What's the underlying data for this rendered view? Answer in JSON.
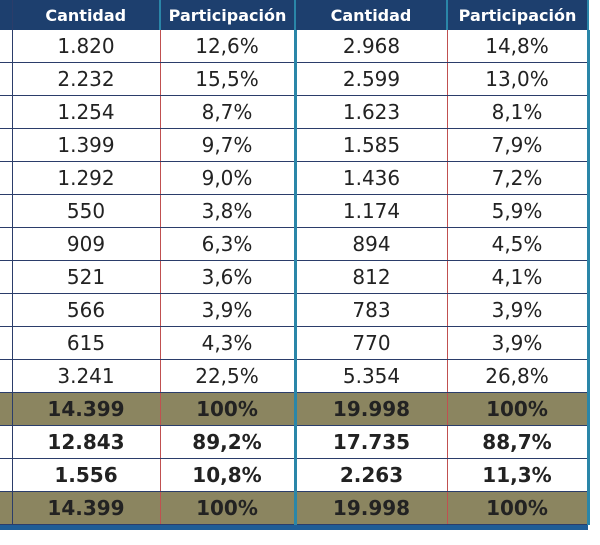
{
  "headers": [
    "Cantidad",
    "Participación",
    "Cantidad",
    "Participación"
  ],
  "rows": [
    {
      "type": "normal",
      "cells": [
        "1.820",
        "12,6%",
        "2.968",
        "14,8%"
      ]
    },
    {
      "type": "normal",
      "cells": [
        "2.232",
        "15,5%",
        "2.599",
        "13,0%"
      ]
    },
    {
      "type": "normal",
      "cells": [
        "1.254",
        "8,7%",
        "1.623",
        "8,1%"
      ]
    },
    {
      "type": "normal",
      "cells": [
        "1.399",
        "9,7%",
        "1.585",
        "7,9%"
      ]
    },
    {
      "type": "normal",
      "cells": [
        "1.292",
        "9,0%",
        "1.436",
        "7,2%"
      ]
    },
    {
      "type": "normal",
      "cells": [
        "550",
        "3,8%",
        "1.174",
        "5,9%"
      ]
    },
    {
      "type": "normal",
      "cells": [
        "909",
        "6,3%",
        "894",
        "4,5%"
      ]
    },
    {
      "type": "normal",
      "cells": [
        "521",
        "3,6%",
        "812",
        "4,1%"
      ]
    },
    {
      "type": "normal",
      "cells": [
        "566",
        "3,9%",
        "783",
        "3,9%"
      ]
    },
    {
      "type": "normal",
      "cells": [
        "615",
        "4,3%",
        "770",
        "3,9%"
      ]
    },
    {
      "type": "normal",
      "cells": [
        "3.241",
        "22,5%",
        "5.354",
        "26,8%"
      ]
    },
    {
      "type": "total",
      "cells": [
        "14.399",
        "100%",
        "19.998",
        "100%"
      ]
    },
    {
      "type": "bold",
      "cells": [
        "12.843",
        "89,2%",
        "17.735",
        "88,7%"
      ]
    },
    {
      "type": "bold",
      "cells": [
        "1.556",
        "10,8%",
        "2.263",
        "11,3%"
      ]
    },
    {
      "type": "total",
      "cells": [
        "14.399",
        "100%",
        "19.998",
        "100%"
      ]
    }
  ],
  "colors": {
    "header": "#1d3f6e",
    "total_row": "#8b8560",
    "accent_border": "#2a86a8"
  }
}
